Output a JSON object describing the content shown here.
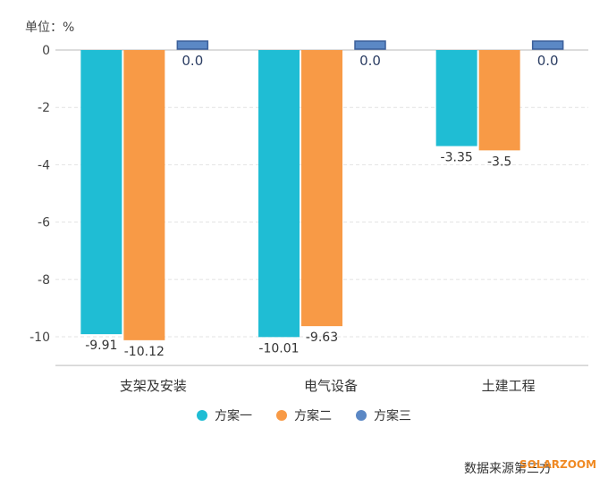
{
  "chart_data": {
    "type": "bar",
    "unit_label": "单位：%",
    "categories": [
      "支架及安装",
      "电气设备",
      "土建工程"
    ],
    "series": [
      {
        "name": "方案一",
        "color": "#1fbdd4",
        "values": [
          -9.91,
          -10.01,
          -3.35
        ]
      },
      {
        "name": "方案二",
        "color": "#f89a46",
        "values": [
          -10.12,
          -9.63,
          -3.5
        ]
      },
      {
        "name": "方案三",
        "color": "#5b88c5",
        "values": [
          0.0,
          0.0,
          0.0
        ]
      }
    ],
    "data_labels": [
      [
        "-9.91",
        "-10.12",
        "0.0"
      ],
      [
        "-10.01",
        "-9.63",
        "0.0"
      ],
      [
        "-3.35",
        "-3.5",
        "0.0"
      ]
    ],
    "ylim": [
      -11,
      0
    ],
    "yticks": [
      0,
      -2,
      -4,
      -6,
      -8,
      -10
    ],
    "ytick_labels": [
      "0",
      "-2",
      "-4",
      "-6",
      "-8",
      "-10"
    ],
    "grid": true,
    "legend_position": "bottom-center",
    "source": "数据来源第三方",
    "watermark": "SOLARZOOM"
  }
}
